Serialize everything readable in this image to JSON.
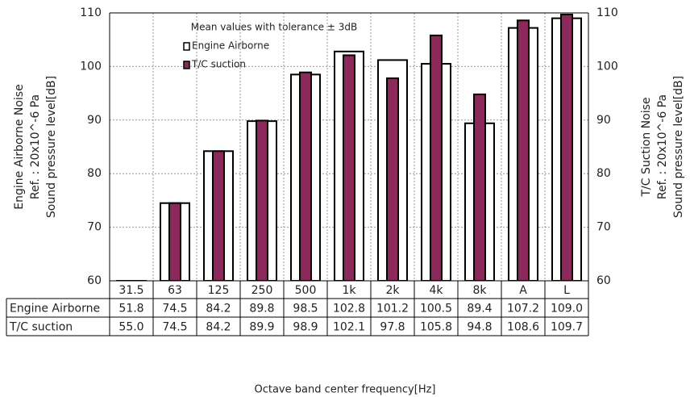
{
  "chart_data": {
    "type": "bar",
    "annotation": "Mean values with tolerance ± 3dB",
    "ylabel": [
      "Engine Airborne Noise",
      "Ref. : 20x10^-6 Pa",
      "Sound pressure level[dB]"
    ],
    "y2label": [
      "T/C Suction Noise",
      "Ref. : 20x10^-6 Pa",
      "Sound pressure level[dB]"
    ],
    "xlabel": "Octave band center frequency[Hz]",
    "categories": [
      "31.5",
      "63",
      "125",
      "250",
      "500",
      "1k",
      "2k",
      "4k",
      "8k",
      "A",
      "L"
    ],
    "series": [
      {
        "name": "Engine Airborne",
        "color": "#ffffff",
        "values": [
          51.8,
          74.5,
          84.2,
          89.8,
          98.5,
          102.8,
          101.2,
          100.5,
          89.4,
          107.2,
          109.0
        ],
        "value_labels": [
          "51.8",
          "74.5",
          "84.2",
          "89.8",
          "98.5",
          "102.8",
          "101.2",
          "100.5",
          "89.4",
          "107.2",
          "109.0"
        ]
      },
      {
        "name": "T/C suction",
        "color": "#8b2a5a",
        "axis": "y2",
        "values": [
          55.0,
          74.5,
          84.2,
          89.9,
          98.9,
          102.1,
          97.8,
          105.8,
          94.8,
          108.6,
          109.7
        ],
        "value_labels": [
          "55.0",
          "74.5",
          "84.2",
          "89.9",
          "98.9",
          "102.1",
          "97.8",
          "105.8",
          "94.8",
          "108.6",
          "109.7"
        ]
      }
    ],
    "ylim": [
      60,
      110
    ],
    "yticks": [
      60,
      70,
      80,
      90,
      100,
      110
    ],
    "y2lim": [
      60,
      110
    ],
    "y2ticks": [
      60,
      70,
      80,
      90,
      100,
      110
    ],
    "grid": true
  }
}
